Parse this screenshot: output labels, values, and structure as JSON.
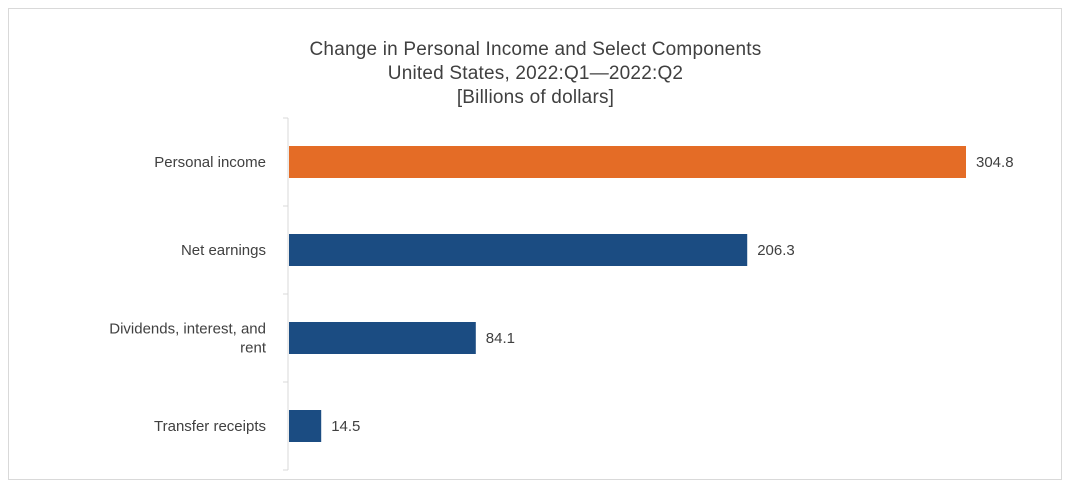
{
  "chart_data": {
    "type": "bar",
    "orientation": "horizontal",
    "title": "Change in Personal Income and Select Components",
    "subtitle": "United States, 2022:Q1—2022:Q2",
    "units": "[Billions of dollars]",
    "categories": [
      "Personal income",
      "Net earnings",
      "Dividends, interest, and rent",
      "Transfer receipts"
    ],
    "category_lines": [
      [
        "Personal income"
      ],
      [
        "Net earnings"
      ],
      [
        "Dividends, interest, and",
        "rent"
      ],
      [
        "Transfer receipts"
      ]
    ],
    "values": [
      304.8,
      206.3,
      84.1,
      14.5
    ],
    "value_labels": [
      "304.8",
      "206.3",
      "84.1",
      "14.5"
    ],
    "colors": [
      "#e46c26",
      "#1b4c82",
      "#1b4c82",
      "#1b4c82"
    ],
    "xlim": [
      0,
      304.8
    ],
    "grid": false,
    "legend": "none"
  }
}
